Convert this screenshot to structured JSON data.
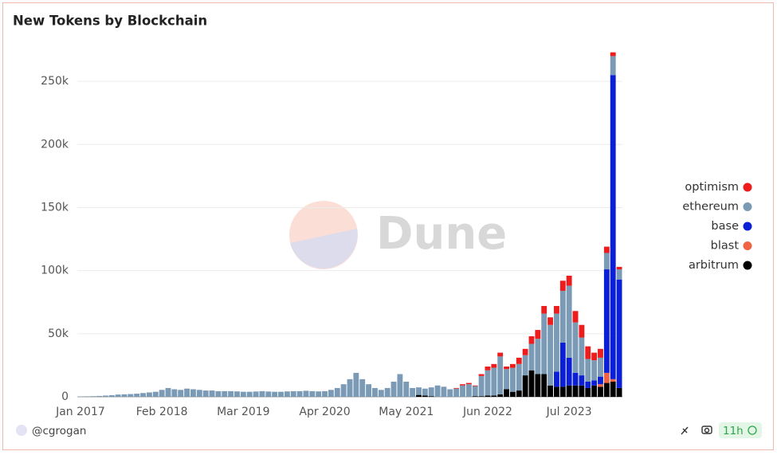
{
  "chart_data": {
    "type": "stacked-bar",
    "title": "New Tokens by Blockchain",
    "categories": [
      "Jan 2017",
      null,
      null,
      null,
      null,
      null,
      null,
      null,
      null,
      null,
      null,
      null,
      null,
      "Feb 2018",
      null,
      null,
      null,
      null,
      null,
      null,
      null,
      null,
      null,
      null,
      null,
      null,
      "Mar 2019",
      null,
      null,
      null,
      null,
      null,
      null,
      null,
      null,
      null,
      null,
      null,
      null,
      "Apr 2020",
      null,
      null,
      null,
      null,
      null,
      null,
      null,
      null,
      null,
      null,
      null,
      null,
      "May 2021",
      null,
      null,
      null,
      null,
      null,
      null,
      null,
      null,
      null,
      null,
      null,
      null,
      "Jun 2022",
      null,
      null,
      null,
      null,
      null,
      null,
      null,
      null,
      null,
      null,
      null,
      null,
      "Jul 2023",
      null,
      null,
      null,
      null,
      null,
      null,
      null,
      null
    ],
    "series": [
      {
        "name": "optimism",
        "color": "#ee1c1c",
        "values": [
          0,
          0,
          0,
          0,
          0,
          0,
          0,
          0,
          0,
          0,
          0,
          0,
          0,
          0,
          0,
          0,
          0,
          0,
          0,
          0,
          0,
          0,
          0,
          0,
          0,
          0,
          0,
          0,
          0,
          0,
          0,
          0,
          0,
          0,
          0,
          0,
          0,
          0,
          0,
          0,
          0,
          0,
          0,
          0,
          0,
          0,
          0,
          0,
          0,
          0,
          0,
          0,
          0,
          0,
          0,
          0,
          0,
          0,
          0,
          0,
          500,
          1000,
          1000,
          500,
          1500,
          3000,
          3000,
          3000,
          2000,
          3000,
          5000,
          5000,
          6000,
          7000,
          6000,
          6000,
          6000,
          8000,
          8000,
          9000,
          10000,
          10000,
          6000,
          7000,
          5000,
          3000,
          2000
        ]
      },
      {
        "name": "ethereum",
        "color": "#7b9ab5",
        "values": [
          300,
          400,
          500,
          700,
          1000,
          1300,
          1800,
          2000,
          2200,
          2500,
          3000,
          3500,
          4000,
          5500,
          7000,
          6000,
          5500,
          6500,
          6000,
          5500,
          5000,
          5000,
          4500,
          4500,
          4500,
          4300,
          4000,
          4000,
          4200,
          4500,
          4200,
          4000,
          4000,
          4300,
          4500,
          4500,
          4800,
          4500,
          4300,
          4500,
          5500,
          7000,
          10000,
          14000,
          19000,
          14000,
          10000,
          7000,
          5500,
          7000,
          12000,
          18000,
          12000,
          7000,
          6000,
          5500,
          7000,
          9000,
          8000,
          6000,
          6500,
          9000,
          10000,
          8000,
          16000,
          20000,
          22000,
          30000,
          16000,
          19000,
          21000,
          16000,
          21000,
          28000,
          48000,
          48000,
          46000,
          41000,
          57000,
          40000,
          30000,
          18000,
          16000,
          15000,
          13000,
          15000,
          8000
        ]
      },
      {
        "name": "base",
        "color": "#0b1fd6",
        "values": [
          0,
          0,
          0,
          0,
          0,
          0,
          0,
          0,
          0,
          0,
          0,
          0,
          0,
          0,
          0,
          0,
          0,
          0,
          0,
          0,
          0,
          0,
          0,
          0,
          0,
          0,
          0,
          0,
          0,
          0,
          0,
          0,
          0,
          0,
          0,
          0,
          0,
          0,
          0,
          0,
          0,
          0,
          0,
          0,
          0,
          0,
          0,
          0,
          0,
          0,
          0,
          0,
          0,
          0,
          0,
          0,
          0,
          0,
          0,
          0,
          0,
          0,
          0,
          0,
          0,
          0,
          0,
          0,
          0,
          0,
          0,
          0,
          0,
          0,
          0,
          0,
          12000,
          35000,
          22000,
          10000,
          8000,
          5000,
          4000,
          6000,
          82000,
          241000,
          86000
        ]
      },
      {
        "name": "blast",
        "color": "#ef6443",
        "values": [
          0,
          0,
          0,
          0,
          0,
          0,
          0,
          0,
          0,
          0,
          0,
          0,
          0,
          0,
          0,
          0,
          0,
          0,
          0,
          0,
          0,
          0,
          0,
          0,
          0,
          0,
          0,
          0,
          0,
          0,
          0,
          0,
          0,
          0,
          0,
          0,
          0,
          0,
          0,
          0,
          0,
          0,
          0,
          0,
          0,
          0,
          0,
          0,
          0,
          0,
          0,
          0,
          0,
          0,
          0,
          0,
          0,
          0,
          0,
          0,
          0,
          0,
          0,
          0,
          0,
          0,
          0,
          0,
          0,
          0,
          0,
          0,
          0,
          0,
          0,
          0,
          0,
          0,
          0,
          0,
          0,
          0,
          0,
          2000,
          8000,
          2000,
          0
        ]
      },
      {
        "name": "arbitrum",
        "color": "#000000",
        "values": [
          0,
          0,
          0,
          0,
          0,
          0,
          0,
          0,
          0,
          0,
          0,
          0,
          0,
          0,
          0,
          0,
          0,
          0,
          0,
          0,
          0,
          0,
          0,
          0,
          0,
          0,
          0,
          0,
          0,
          0,
          0,
          0,
          0,
          0,
          0,
          0,
          0,
          0,
          0,
          0,
          0,
          0,
          0,
          0,
          0,
          0,
          0,
          0,
          0,
          0,
          0,
          0,
          0,
          0,
          1500,
          1000,
          500,
          0,
          0,
          0,
          0,
          0,
          0,
          500,
          500,
          1000,
          1000,
          2000,
          6000,
          4000,
          5000,
          17000,
          21000,
          18000,
          18000,
          9000,
          8000,
          8000,
          9000,
          9000,
          9000,
          7000,
          9000,
          8000,
          11000,
          12000,
          7000
        ]
      }
    ],
    "ylim": [
      0,
      275000
    ],
    "yticks": [
      0,
      {
        "value": 50000,
        "label": "50k"
      },
      {
        "value": 100000,
        "label": "100k"
      },
      {
        "value": 150000,
        "label": "150k"
      },
      {
        "value": 200000,
        "label": "200k"
      },
      {
        "value": 250000,
        "label": "250k"
      }
    ],
    "grid": true,
    "legend": "right"
  },
  "watermark": "Dune",
  "footer": {
    "user": "@cgrogan",
    "age": "11h"
  }
}
